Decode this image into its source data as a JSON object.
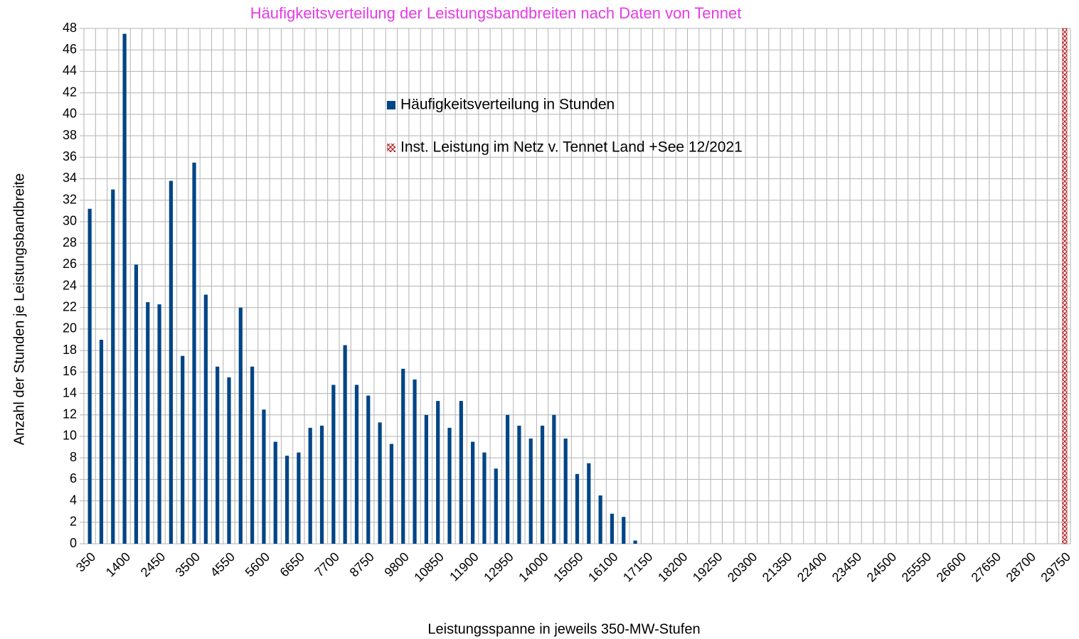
{
  "chart_data": {
    "type": "bar",
    "title": "Häufigkeitsverteilung der Leistungsbandbreiten nach Daten von Tennet",
    "x_label": "Leistungsspanne in jeweils 350-MW-Stufen",
    "y_label": "Anzahl der Stunden je Leistungsbandbreite",
    "categories": [
      350,
      null,
      null,
      1400,
      null,
      null,
      2450,
      null,
      null,
      3500,
      null,
      null,
      4550,
      null,
      null,
      5600,
      null,
      null,
      6650,
      null,
      null,
      7700,
      null,
      null,
      8750,
      null,
      null,
      9800,
      null,
      null,
      10850,
      null,
      null,
      11900,
      null,
      null,
      12950,
      null,
      null,
      14000,
      null,
      null,
      15050,
      null,
      null,
      16100,
      null,
      null,
      17150,
      null,
      null,
      18200,
      null,
      null,
      19250,
      null,
      null,
      20300,
      null,
      null,
      21350,
      null,
      null,
      22400,
      null,
      null,
      23450,
      null,
      null,
      24500,
      null,
      null,
      25550,
      null,
      null,
      26600,
      null,
      null,
      27650,
      null,
      null,
      28700,
      null,
      null,
      29750
    ],
    "series": [
      {
        "name": "Häufigkeitsverteilung in Stunden",
        "color": "#004586",
        "values": [
          31.2,
          19,
          33,
          47.5,
          26,
          22.5,
          22.3,
          33.8,
          17.5,
          35.5,
          23.2,
          16.5,
          15.5,
          22,
          16.5,
          12.5,
          9.5,
          8.2,
          8.5,
          10.8,
          11,
          14.8,
          18.5,
          14.8,
          13.8,
          11.3,
          9.3,
          16.3,
          15.3,
          12,
          13.3,
          10.8,
          13.3,
          9.5,
          8.5,
          7,
          12,
          11,
          9.8,
          11,
          12,
          9.8,
          6.5,
          7.5,
          4.5,
          2.8,
          2.5,
          0.3,
          null,
          null,
          null,
          null,
          null,
          null,
          null,
          null,
          null,
          null,
          null,
          null,
          null,
          null,
          null,
          null,
          null,
          null,
          null,
          null,
          null,
          null,
          null,
          null,
          null,
          null,
          null,
          null,
          null,
          null,
          null,
          null,
          null,
          null,
          null,
          null,
          null
        ]
      },
      {
        "name": "Inst. Leistung im Netz v. Tennet  Land +See 12/2021",
        "color": "#b22222",
        "values": [
          null,
          null,
          null,
          null,
          null,
          null,
          null,
          null,
          null,
          null,
          null,
          null,
          null,
          null,
          null,
          null,
          null,
          null,
          null,
          null,
          null,
          null,
          null,
          null,
          null,
          null,
          null,
          null,
          null,
          null,
          null,
          null,
          null,
          null,
          null,
          null,
          null,
          null,
          null,
          null,
          null,
          null,
          null,
          null,
          null,
          null,
          null,
          null,
          null,
          null,
          null,
          null,
          null,
          null,
          null,
          null,
          null,
          null,
          null,
          null,
          null,
          null,
          null,
          null,
          null,
          null,
          null,
          null,
          null,
          null,
          null,
          null,
          null,
          null,
          null,
          null,
          null,
          null,
          null,
          null,
          null,
          null,
          null,
          null,
          48
        ]
      }
    ],
    "ylim": [
      0,
      48
    ],
    "yticks": [
      0,
      2,
      4,
      6,
      8,
      10,
      12,
      14,
      16,
      18,
      20,
      22,
      24,
      26,
      28,
      30,
      32,
      34,
      36,
      38,
      40,
      42,
      44,
      46,
      48
    ],
    "grid": true
  }
}
